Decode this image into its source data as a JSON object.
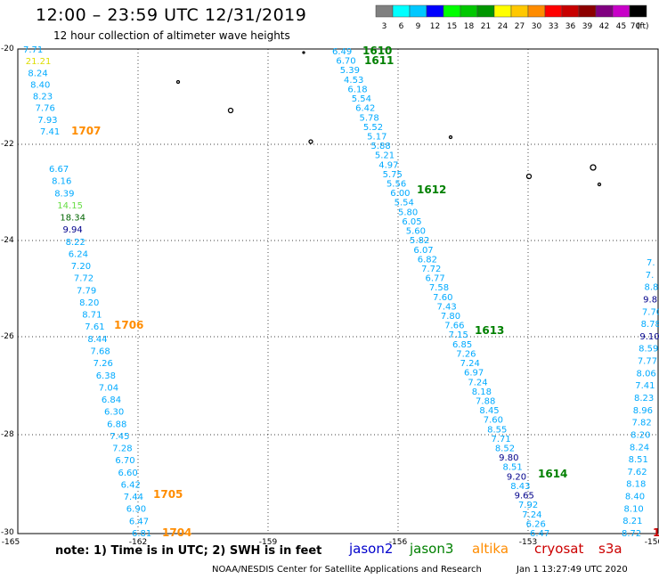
{
  "title": "12:00 – 23:59 UTC 12/31/2019",
  "subtitle": "12 hour collection of altimeter wave heights",
  "legend": {
    "unit": "(ft)",
    "labels": [
      "3",
      "6",
      "9",
      "12",
      "15",
      "18",
      "21",
      "24",
      "27",
      "30",
      "33",
      "36",
      "39",
      "42",
      "45",
      "70"
    ],
    "colors": [
      "#808080",
      "#00ffff",
      "#00c8ff",
      "#0000ff",
      "#00ff00",
      "#00c800",
      "#009600",
      "#ffff00",
      "#ffc800",
      "#ff8c00",
      "#ff0000",
      "#c80000",
      "#8c0000",
      "#800080",
      "#c800c8",
      "#000000"
    ]
  },
  "colors": {
    "jason2": "#0000cc",
    "jason3": "#008000",
    "altika": "#ff8c00",
    "cryosat": "#cc0000",
    "s3a": "#cc0000",
    "swh_light": "#00aaff",
    "swh_dark": "#00008b",
    "swh_green": "#66dd44",
    "swh_darkgreen": "#006400",
    "swh_yellow": "#dddd00",
    "time_orange": "#ff8c00",
    "time_green": "#008000"
  },
  "axes": {
    "lat_labels": [
      "-20",
      "-22",
      "-24",
      "-26",
      "-28",
      "-30"
    ],
    "lon_labels": [
      "-165",
      "-162",
      "-159",
      "-156",
      "-153",
      "-150"
    ]
  },
  "swh_tracks": [
    {
      "id": "west",
      "values": [
        [
          "7.71",
          "light"
        ],
        [
          "21.21",
          "yellow"
        ],
        [
          "8.24",
          "light"
        ],
        [
          "8.40",
          "light"
        ],
        [
          "8.23",
          "light"
        ],
        [
          "7.76",
          "light"
        ],
        [
          "7.93",
          "light"
        ],
        [
          "7.41",
          "light"
        ],
        [
          "6.67",
          "light"
        ],
        [
          "8.16",
          "light"
        ],
        [
          "8.39",
          "light"
        ],
        [
          "14.15",
          "green"
        ],
        [
          "18.34",
          "darkgreen"
        ],
        [
          "9.94",
          "dark"
        ],
        [
          "8.22",
          "light"
        ],
        [
          "6.24",
          "light"
        ],
        [
          "7.20",
          "light"
        ],
        [
          "7.72",
          "light"
        ],
        [
          "7.79",
          "light"
        ],
        [
          "8.20",
          "light"
        ],
        [
          "8.71",
          "light"
        ],
        [
          "7.61",
          "light"
        ],
        [
          "8.44",
          "light"
        ],
        [
          "7.68",
          "light"
        ],
        [
          "7.26",
          "light"
        ],
        [
          "6.38",
          "light"
        ],
        [
          "7.04",
          "light"
        ],
        [
          "6.84",
          "light"
        ],
        [
          "6.30",
          "light"
        ],
        [
          "6.88",
          "light"
        ],
        [
          "7.45",
          "light"
        ],
        [
          "7.28",
          "light"
        ],
        [
          "6.70",
          "light"
        ],
        [
          "6.60",
          "light"
        ],
        [
          "6.42",
          "light"
        ],
        [
          "7.44",
          "light"
        ],
        [
          "6.90",
          "light"
        ],
        [
          "6.47",
          "light"
        ],
        [
          "6.81",
          "light"
        ]
      ]
    },
    {
      "id": "middle",
      "values": [
        [
          "6.49",
          "light"
        ],
        [
          "6.70",
          "light"
        ],
        [
          "5.39",
          "light"
        ],
        [
          "4.53",
          "light"
        ],
        [
          "6.18",
          "light"
        ],
        [
          "5.54",
          "light"
        ],
        [
          "6.42",
          "light"
        ],
        [
          "5.78",
          "light"
        ],
        [
          "5.52",
          "light"
        ],
        [
          "5.17",
          "light"
        ],
        [
          "5.88",
          "light"
        ],
        [
          "5.21",
          "light"
        ],
        [
          "4.97",
          "light"
        ],
        [
          "5.75",
          "light"
        ],
        [
          "5.56",
          "light"
        ],
        [
          "6.00",
          "light"
        ],
        [
          "5.54",
          "light"
        ],
        [
          "5.80",
          "light"
        ],
        [
          "6.05",
          "light"
        ],
        [
          "5.60",
          "light"
        ],
        [
          "5.82",
          "light"
        ],
        [
          "6.07",
          "light"
        ],
        [
          "6.82",
          "light"
        ],
        [
          "7.72",
          "light"
        ],
        [
          "6.77",
          "light"
        ],
        [
          "7.58",
          "light"
        ],
        [
          "7.60",
          "light"
        ],
        [
          "7.43",
          "light"
        ],
        [
          "7.80",
          "light"
        ],
        [
          "7.66",
          "light"
        ],
        [
          "7.15",
          "light"
        ],
        [
          "6.85",
          "light"
        ],
        [
          "7.26",
          "light"
        ],
        [
          "7.24",
          "light"
        ],
        [
          "6.97",
          "light"
        ],
        [
          "7.24",
          "light"
        ],
        [
          "8.18",
          "light"
        ],
        [
          "7.88",
          "light"
        ],
        [
          "8.45",
          "light"
        ],
        [
          "7.60",
          "light"
        ],
        [
          "8.55",
          "light"
        ],
        [
          "7.71",
          "light"
        ],
        [
          "8.52",
          "light"
        ],
        [
          "9.80",
          "dark"
        ],
        [
          "8.51",
          "light"
        ],
        [
          "9.20",
          "dark"
        ],
        [
          "8.43",
          "light"
        ],
        [
          "9.65",
          "dark"
        ],
        [
          "7.92",
          "light"
        ],
        [
          "7.24",
          "light"
        ],
        [
          "6.26",
          "light"
        ],
        [
          "6.47",
          "light"
        ]
      ]
    },
    {
      "id": "east",
      "values": [
        [
          "7.",
          "light"
        ],
        [
          "7.",
          "light"
        ],
        [
          "8.8",
          "light"
        ],
        [
          "9.8",
          "dark"
        ],
        [
          "7.70",
          "light"
        ],
        [
          "8.78",
          "light"
        ],
        [
          "9.10",
          "dark"
        ],
        [
          "8.59",
          "light"
        ],
        [
          "7.77",
          "light"
        ],
        [
          "8.06",
          "light"
        ],
        [
          "7.41",
          "light"
        ],
        [
          "8.23",
          "light"
        ],
        [
          "8.96",
          "light"
        ],
        [
          "7.82",
          "light"
        ],
        [
          "8.20",
          "light"
        ],
        [
          "8.24",
          "light"
        ],
        [
          "8.51",
          "light"
        ],
        [
          "7.62",
          "light"
        ],
        [
          "8.18",
          "light"
        ],
        [
          "8.40",
          "light"
        ],
        [
          "8.10",
          "light"
        ],
        [
          "8.21",
          "light"
        ],
        [
          "8.72",
          "light"
        ]
      ]
    }
  ],
  "time_labels": [
    {
      "text": "1707",
      "color": "orange"
    },
    {
      "text": "1706",
      "color": "orange"
    },
    {
      "text": "1705",
      "color": "orange"
    },
    {
      "text": "1704",
      "color": "orange"
    },
    {
      "text": "1610",
      "color": "green"
    },
    {
      "text": "1611",
      "color": "green"
    },
    {
      "text": "1612",
      "color": "green"
    },
    {
      "text": "1613",
      "color": "green"
    },
    {
      "text": "1614",
      "color": "green"
    }
  ],
  "footer": {
    "note": "note: 1) Time is in UTC; 2) SWH is in feet",
    "jason2": "jason2",
    "jason3": "jason3",
    "altika": "altika",
    "cryosat": "cryosat",
    "s3a": "s3a",
    "s3a_time_fragment": "1",
    "credit": "NOAA/NESDIS Center for Satellite Applications and Research",
    "stamp": "Jan  1 13:27:49 UTC 2020"
  }
}
